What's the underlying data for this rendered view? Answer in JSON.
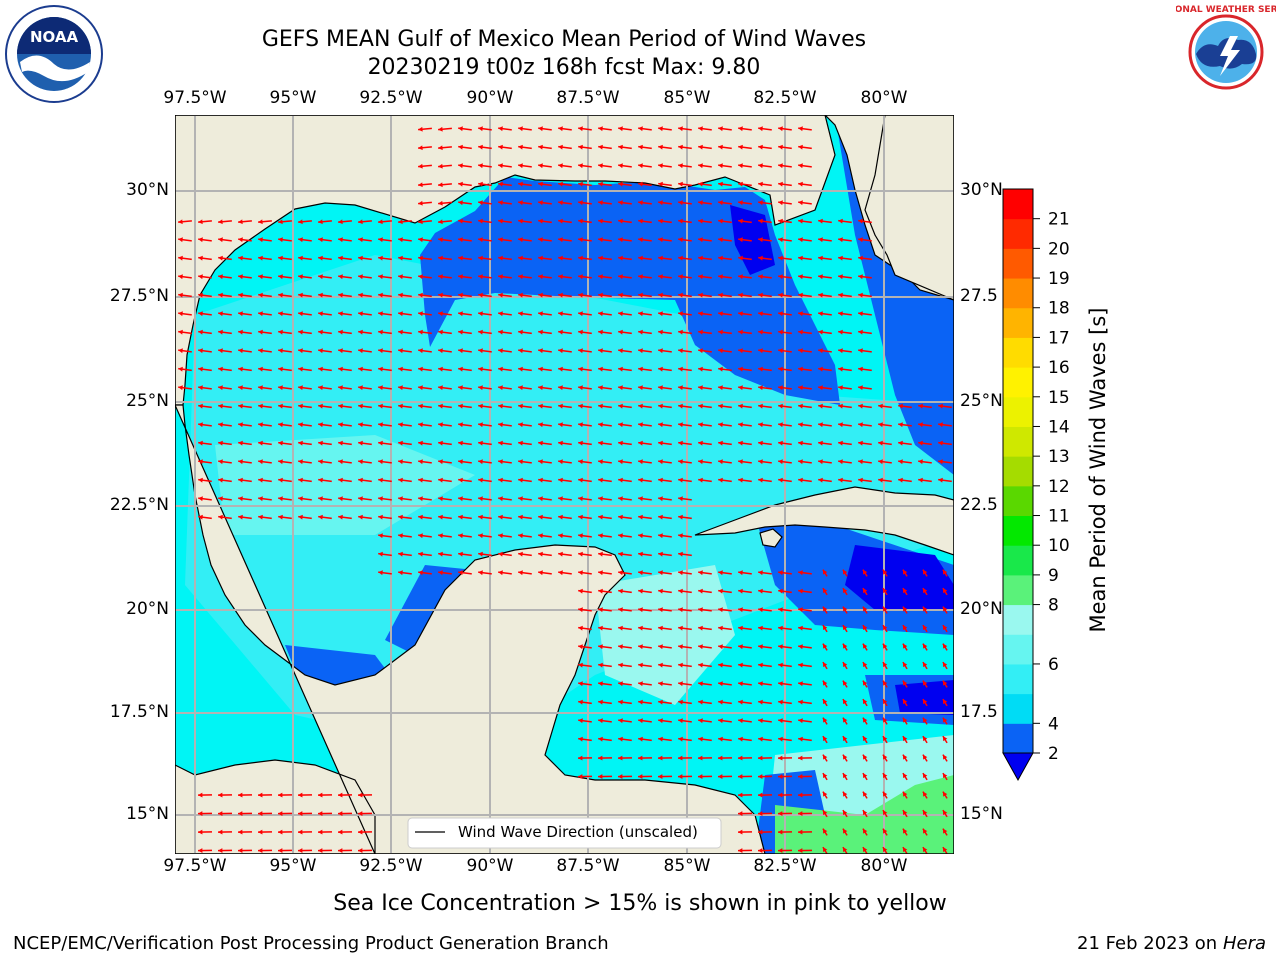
{
  "title": {
    "line1": "GEFS MEAN Gulf of Mexico Mean Period of Wind Waves",
    "line2": "20230219 t00z 168h fcst   Max: 9.80"
  },
  "axes": {
    "lon_labels": [
      "97.5°W",
      "95°W",
      "92.5°W",
      "90°W",
      "87.5°W",
      "85°W",
      "82.5°W",
      "80°W"
    ],
    "lat_labels_left": [
      "30°N",
      "27.5°N",
      "25°N",
      "22.5°N",
      "20°N",
      "17.5°N",
      "15°N"
    ],
    "lat_labels_right": [
      "30°N",
      "27.5",
      "25°N",
      "22.5",
      "20°N",
      "17.5",
      "15°N"
    ]
  },
  "legend": {
    "label": "Wind Wave Direction (unscaled)"
  },
  "colorbar": {
    "label": "Mean Period of Wind Waves [s]",
    "ticks": [
      "2",
      "4",
      "6",
      "8",
      "9",
      "10",
      "11",
      "12",
      "13",
      "14",
      "15",
      "16",
      "17",
      "18",
      "19",
      "20",
      "21"
    ],
    "colors": [
      "#0a63f5",
      "#00dcf5",
      "#33eef5",
      "#66f5f0",
      "#9af8ef",
      "#5af27a",
      "#19e84a",
      "#03e800",
      "#5ad800",
      "#a5dc00",
      "#cfe800",
      "#ecf200",
      "#fff200",
      "#ffdc00",
      "#ffb400",
      "#ff8c00",
      "#ff5a00",
      "#ff2a00",
      "#ff0000"
    ],
    "extend_color": "#0000f0"
  },
  "colors": {
    "land": "#eeecdb",
    "ocean_base": "#00f5f5",
    "arrow": "#ff0000",
    "grid": "#b3b3b3"
  },
  "footer": {
    "note": "Sea Ice Concentration > 15% is shown in pink to yellow",
    "credit": "NCEP/EMC/Verification Post Processing Product Generation Branch",
    "date": "21 Feb 2023 on",
    "host": "Hera"
  },
  "logos": {
    "noaa": "NOAA",
    "nws": "NATIONAL WEATHER SERVICE"
  }
}
